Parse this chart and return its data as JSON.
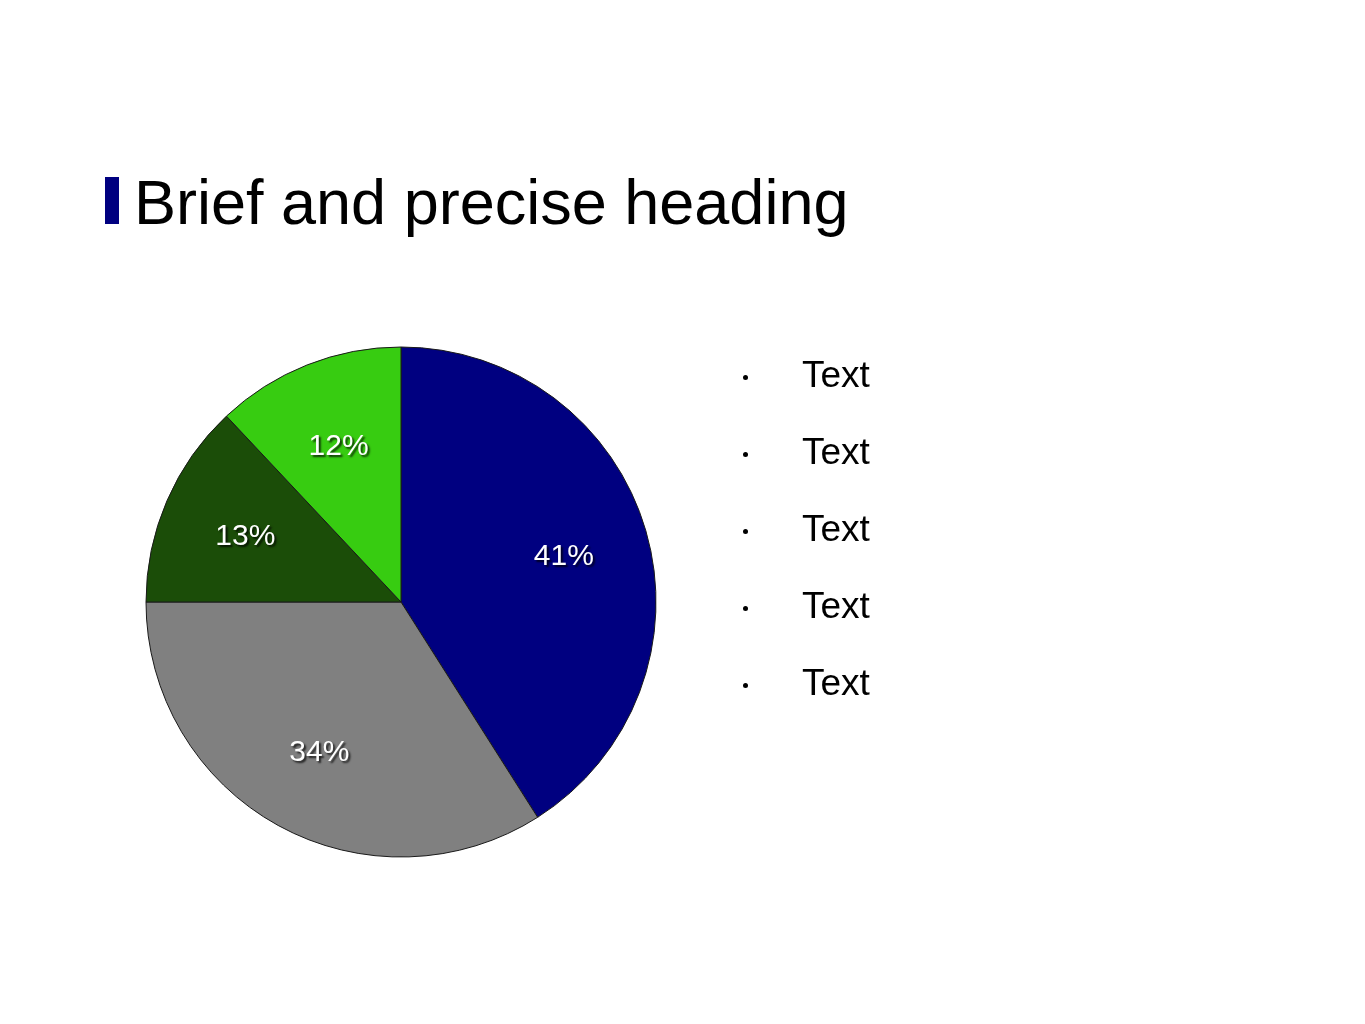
{
  "chart_data": {
    "type": "pie",
    "title": "Brief and precise heading",
    "categories": [
      null,
      null,
      null,
      null
    ],
    "values": [
      41,
      34,
      13,
      12
    ],
    "colors": [
      "#000080",
      "#808080",
      "#1b4d08",
      "#37cc11"
    ],
    "value_labels": [
      "41%",
      "34%",
      "13%",
      "12%"
    ],
    "annotations": [
      "Text",
      "Text",
      "Text",
      "Text",
      "Text"
    ]
  }
}
